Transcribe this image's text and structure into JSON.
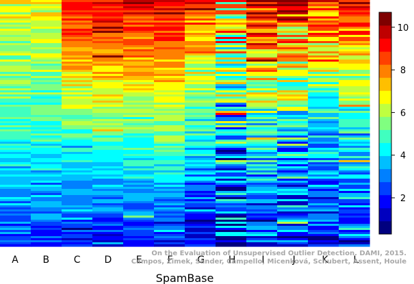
{
  "chart_data": {
    "type": "heatmap",
    "xlabel": "SpamBase",
    "columns": [
      "A",
      "B",
      "C",
      "D",
      "E",
      "F",
      "G",
      "H",
      "I",
      "J",
      "K",
      "L"
    ],
    "colorbar": {
      "range": [
        0.3,
        10.7
      ],
      "ticks": [
        2,
        4,
        6,
        8,
        10
      ],
      "colors": [
        "#00007F",
        "#0000BF",
        "#0000FF",
        "#0040FF",
        "#0080FF",
        "#00BFFF",
        "#00FFFF",
        "#40FFBF",
        "#80FF80",
        "#BFFF40",
        "#FFFF00",
        "#FFBF00",
        "#FF8000",
        "#FF4000",
        "#FF0000",
        "#BF0000",
        "#7F0000"
      ]
    },
    "column_profiles": [
      {
        "column": "A",
        "top": 6.6,
        "mid": 4.9,
        "bottom": 2.4,
        "noise": 0.9
      },
      {
        "column": "B",
        "top": 6.7,
        "mid": 4.8,
        "bottom": 2.4,
        "noise": 0.9
      },
      {
        "column": "C",
        "top": 9.2,
        "mid": 5.4,
        "bottom": 1.9,
        "noise": 0.8
      },
      {
        "column": "D",
        "top": 9.4,
        "mid": 5.6,
        "bottom": 1.8,
        "noise": 0.8
      },
      {
        "column": "E",
        "top": 9.3,
        "mid": 5.5,
        "bottom": 1.8,
        "noise": 0.8
      },
      {
        "column": "F",
        "top": 9.4,
        "mid": 5.6,
        "bottom": 1.9,
        "noise": 0.8
      },
      {
        "column": "G",
        "top": 8.6,
        "mid": 4.6,
        "bottom": 1.6,
        "noise": 1.2
      },
      {
        "column": "H",
        "top": 7.8,
        "mid": 4.0,
        "bottom": 2.0,
        "noise": 2.8
      },
      {
        "column": "I",
        "top": 9.6,
        "mid": 4.7,
        "bottom": 1.9,
        "noise": 1.8
      },
      {
        "column": "J",
        "top": 8.4,
        "mid": 4.5,
        "bottom": 2.1,
        "noise": 2.2
      },
      {
        "column": "K",
        "top": 8.7,
        "mid": 4.2,
        "bottom": 1.8,
        "noise": 1.5
      },
      {
        "column": "L",
        "top": 9.0,
        "mid": 4.7,
        "bottom": 2.0,
        "noise": 1.3
      }
    ]
  },
  "watermark": {
    "line1": "On the Evaluation of Unsupervised Outlier Detection. DAMI, 2015.",
    "line2": "Campos, Zimek, Sander, Campello, Micenková, Schubert, Assent, Houle"
  }
}
